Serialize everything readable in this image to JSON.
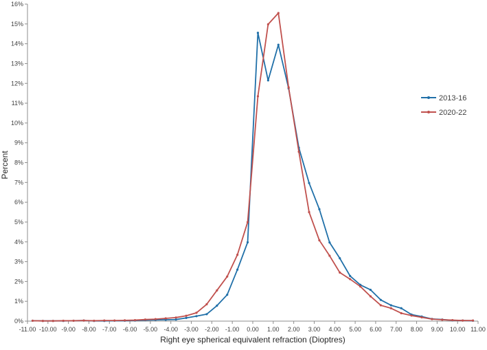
{
  "chart_data": {
    "type": "line",
    "title": "",
    "xlabel": "Right eye spherical equivalent refraction (Dioptres)",
    "ylabel": "Percent",
    "xlim": [
      -11,
      11
    ],
    "ylim": [
      0,
      16
    ],
    "x_ticks": [
      "-11.00",
      "-10.00",
      "-9.00",
      "-8.00",
      "-7.00",
      "-6.00",
      "-5.00",
      "-4.00",
      "-3.00",
      "-2.00",
      "-1.00",
      "0.00",
      "1.00",
      "2.00",
      "3.00",
      "4.00",
      "5.00",
      "6.00",
      "7.00",
      "8.00",
      "9.00",
      "10.00",
      "11.00"
    ],
    "y_ticks": [
      "0%",
      "1%",
      "2%",
      "3%",
      "4%",
      "5%",
      "6%",
      "7%",
      "8%",
      "9%",
      "10%",
      "11%",
      "12%",
      "13%",
      "14%",
      "15%",
      "16%"
    ],
    "grid": false,
    "legend_position": "right",
    "x": [
      -10.75,
      -10.25,
      -9.75,
      -9.25,
      -8.75,
      -8.25,
      -7.75,
      -7.25,
      -6.75,
      -6.25,
      -5.75,
      -5.25,
      -4.75,
      -4.25,
      -3.75,
      -3.25,
      -2.75,
      -2.25,
      -1.75,
      -1.25,
      -0.75,
      -0.25,
      0.25,
      0.75,
      1.25,
      1.75,
      2.25,
      2.75,
      3.25,
      3.75,
      4.25,
      4.75,
      5.25,
      5.75,
      6.25,
      6.75,
      7.25,
      7.75,
      8.25,
      8.75,
      9.25,
      9.75,
      10.25,
      10.75
    ],
    "series": [
      {
        "name": "2013-16",
        "color": "#1f6fa8",
        "values": [
          0.02,
          0.01,
          0.01,
          0.01,
          0.02,
          0.03,
          0.01,
          0.01,
          0.02,
          0.02,
          0.03,
          0.05,
          0.06,
          0.07,
          0.08,
          0.16,
          0.25,
          0.35,
          0.78,
          1.33,
          2.6,
          3.98,
          14.55,
          12.15,
          13.95,
          11.75,
          8.75,
          6.97,
          5.65,
          3.97,
          3.17,
          2.28,
          1.83,
          1.58,
          1.07,
          0.8,
          0.65,
          0.33,
          0.23,
          0.11,
          0.08,
          0.04,
          0.03,
          0.02
        ]
      },
      {
        "name": "2020-22",
        "color": "#c0504d",
        "values": [
          0.02,
          0.01,
          0.01,
          0.02,
          0.02,
          0.03,
          0.02,
          0.03,
          0.03,
          0.04,
          0.05,
          0.08,
          0.1,
          0.14,
          0.18,
          0.27,
          0.42,
          0.85,
          1.55,
          2.25,
          3.35,
          5.0,
          11.35,
          14.98,
          15.55,
          11.8,
          8.55,
          5.5,
          4.08,
          3.3,
          2.45,
          2.12,
          1.75,
          1.25,
          0.8,
          0.65,
          0.4,
          0.28,
          0.19,
          0.1,
          0.07,
          0.05,
          0.03,
          0.03
        ]
      }
    ]
  }
}
